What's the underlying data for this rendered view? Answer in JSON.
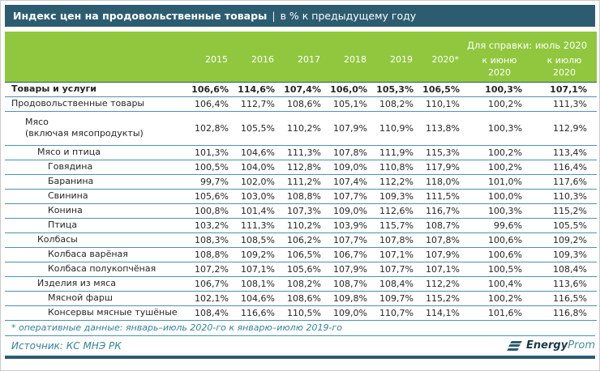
{
  "header": {
    "title": "Индекс цен на продовольственные товары",
    "separator": "|",
    "subtitle": "в % к предыдущему году"
  },
  "chart_data": {
    "type": "table",
    "title": "Индекс цен на продовольственные товары, в % к предыдущему году",
    "ref_group_header": "Для справки: июль 2020",
    "columns": [
      "2015",
      "2016",
      "2017",
      "2018",
      "2019",
      "2020*",
      "к июню\n2020",
      "к июлю\n2020"
    ],
    "rows": [
      {
        "label": "Товары и услуги",
        "indent": 0,
        "bold": true,
        "values": [
          "106,6%",
          "114,6%",
          "107,4%",
          "106,0%",
          "105,3%",
          "106,5%",
          "100,3%",
          "107,1%"
        ]
      },
      {
        "label": "Продовольственные товары",
        "indent": 0,
        "bold": false,
        "values": [
          "106,4%",
          "112,7%",
          "108,6%",
          "105,1%",
          "108,2%",
          "110,1%",
          "100,2%",
          "111,3%"
        ]
      },
      {
        "label": "Мясо\n(включая мясопродукты)",
        "indent": 1,
        "bold": false,
        "tall": true,
        "values": [
          "102,8%",
          "105,5%",
          "110,2%",
          "107,9%",
          "110,9%",
          "113,8%",
          "100,3%",
          "112,9%"
        ]
      },
      {
        "label": "Мясо и птица",
        "indent": 2,
        "bold": false,
        "values": [
          "101,3%",
          "104,6%",
          "111,3%",
          "107,8%",
          "111,9%",
          "115,3%",
          "100,2%",
          "113,4%"
        ]
      },
      {
        "label": "Говядина",
        "indent": 3,
        "bold": false,
        "values": [
          "100,5%",
          "104,0%",
          "112,8%",
          "109,0%",
          "110,8%",
          "117,9%",
          "100,2%",
          "116,4%"
        ]
      },
      {
        "label": "Баранина",
        "indent": 3,
        "bold": false,
        "values": [
          "99,7%",
          "102,0%",
          "111,2%",
          "107,4%",
          "112,2%",
          "118,0%",
          "101,0%",
          "117,6%"
        ]
      },
      {
        "label": "Свинина",
        "indent": 3,
        "bold": false,
        "values": [
          "105,6%",
          "103,0%",
          "108,8%",
          "107,7%",
          "109,3%",
          "111,5%",
          "100,0%",
          "110,3%"
        ]
      },
      {
        "label": "Конина",
        "indent": 3,
        "bold": false,
        "values": [
          "100,8%",
          "101,4%",
          "107,3%",
          "109,0%",
          "112,6%",
          "116,7%",
          "100,3%",
          "115,2%"
        ]
      },
      {
        "label": "Птица",
        "indent": 3,
        "bold": false,
        "values": [
          "103,2%",
          "111,3%",
          "110,2%",
          "103,9%",
          "115,7%",
          "108,7%",
          "99,6%",
          "105,5%"
        ]
      },
      {
        "label": "Колбасы",
        "indent": 2,
        "bold": false,
        "values": [
          "108,3%",
          "108,5%",
          "106,2%",
          "107,7%",
          "107,8%",
          "107,8%",
          "100,6%",
          "109,2%"
        ]
      },
      {
        "label": "Колбаса варёная",
        "indent": 3,
        "bold": false,
        "values": [
          "108,8%",
          "109,2%",
          "106,5%",
          "106,7%",
          "107,1%",
          "107,9%",
          "100,6%",
          "109,3%"
        ]
      },
      {
        "label": "Колбаса полукопчёная",
        "indent": 3,
        "bold": false,
        "values": [
          "107,2%",
          "107,1%",
          "105,6%",
          "107,9%",
          "107,7%",
          "107,1%",
          "100,5%",
          "108,4%"
        ]
      },
      {
        "label": "Изделия из мяса",
        "indent": 2,
        "bold": false,
        "values": [
          "106,7%",
          "108,1%",
          "108,2%",
          "108,7%",
          "108,4%",
          "112,2%",
          "100,4%",
          "113,6%"
        ]
      },
      {
        "label": "Мясной фарш",
        "indent": 3,
        "bold": false,
        "values": [
          "102,1%",
          "104,6%",
          "108,6%",
          "109,8%",
          "109,7%",
          "115,2%",
          "100,2%",
          "116,5%"
        ]
      },
      {
        "label": "Консервы мясные тушёные",
        "indent": 3,
        "bold": false,
        "values": [
          "108,4%",
          "116,6%",
          "110,5%",
          "109,0%",
          "110,7%",
          "114,1%",
          "101,6%",
          "116,8%"
        ]
      }
    ]
  },
  "footer": {
    "footnote": "* оперативные данные: январь–июль 2020-го к январю–июлю 2019-го",
    "source": "Источник: КС МНЭ РК",
    "logo_bold": "Energy",
    "logo_light": "Prom"
  },
  "colors": {
    "title_bar": "#2c5c70",
    "header_green": "#90c73e",
    "row_separator": "#4e92ac",
    "footnote_text": "#33809e",
    "logo_dark": "#1b3a4a",
    "logo_light": "#4d8ba3"
  }
}
